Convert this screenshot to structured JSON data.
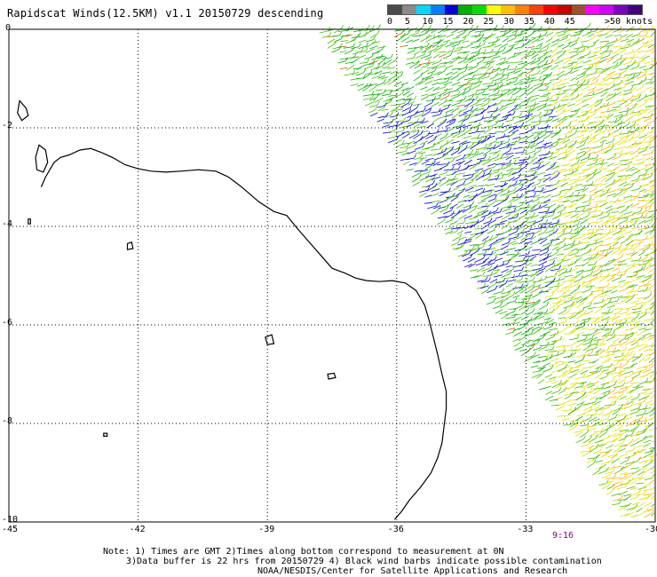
{
  "title": "Rapidscat Winds(12.5KM) v1.1 20150729 descending",
  "legend": {
    "colors": [
      "#4a4a4a",
      "#8a8a8a",
      "#00d8ff",
      "#0080ff",
      "#0000e0",
      "#00b000",
      "#00e000",
      "#ffff00",
      "#ffbf00",
      "#ff7f00",
      "#ff4000",
      "#ff0000",
      "#c80000",
      "#a05028",
      "#ff00ff",
      "#d000ff",
      "#8000c0",
      "#400080"
    ],
    "labels": [
      "0",
      "5",
      "10",
      "15",
      "20",
      "25",
      "30",
      "35",
      "40",
      "45",
      ">50 knots"
    ]
  },
  "axes": {
    "lon_min": -45,
    "lon_max": -30,
    "lat_min": -10,
    "lat_max": 0,
    "lon_ticks": [
      "-45",
      "-42",
      "-39",
      "-36",
      "-33",
      "-30"
    ],
    "lat_ticks": [
      "0",
      "-2",
      "-4",
      "-6",
      "-8",
      "-10"
    ]
  },
  "swath_time": "9:16",
  "notes": [
    "Note: 1) Times are GMT 2)Times along bottom correspond to measurement at 0N",
    "3)Data buffer is 22 hrs from 20150729 4) Black wind barbs indicate possible contamination",
    "NOAA/NESDIS/Center for Satellite Applications and Research"
  ],
  "map_colors": {
    "coast": "#000000",
    "grid": "#000000",
    "barb_low": "#0000e0",
    "barb_mid": "#00b000",
    "barb_mid2": "#40c000",
    "barb_high": "#e0e000",
    "barb_higher": "#ffb000",
    "barb_top": "#d06000"
  }
}
